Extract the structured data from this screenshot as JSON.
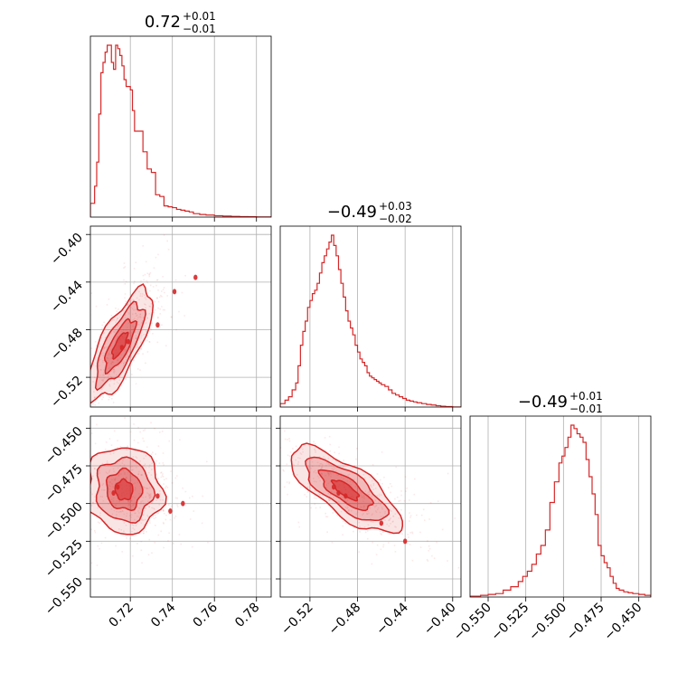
{
  "figure": {
    "type": "corner-plot",
    "color": "#d62728",
    "grid": true
  },
  "titles": [
    {
      "value": "0.72",
      "plus": "+0.01",
      "minus": "−0.01"
    },
    {
      "value": "−0.49",
      "plus": "+0.03",
      "minus": "−0.02"
    },
    {
      "value": "−0.49",
      "plus": "+0.01",
      "minus": "−0.01"
    }
  ],
  "params": [
    {
      "range": [
        0.701,
        0.787
      ],
      "ticks": [
        0.72,
        0.74,
        0.76,
        0.78
      ],
      "tick_labels": [
        "0.72",
        "0.74",
        "0.76",
        "0.78"
      ]
    },
    {
      "range": [
        -0.545,
        -0.393
      ],
      "ticks": [
        -0.52,
        -0.48,
        -0.44,
        -0.4
      ],
      "tick_labels": [
        "−0.52",
        "−0.48",
        "−0.44",
        "−0.40"
      ]
    },
    {
      "range": [
        -0.562,
        -0.442
      ],
      "ticks": [
        -0.55,
        -0.525,
        -0.5,
        -0.475,
        -0.45
      ],
      "tick_labels": [
        "−0.550",
        "−0.525",
        "−0.500",
        "−0.475",
        "−0.450"
      ]
    }
  ],
  "chart_data": [
    {
      "type": "histogram",
      "param": 0,
      "x": [
        0.701,
        0.703,
        0.704,
        0.705,
        0.706,
        0.707,
        0.708,
        0.709,
        0.71,
        0.711,
        0.712,
        0.713,
        0.714,
        0.715,
        0.716,
        0.717,
        0.718,
        0.719,
        0.72,
        0.721,
        0.722,
        0.723,
        0.724,
        0.726,
        0.728,
        0.73,
        0.732,
        0.734,
        0.736,
        0.738,
        0.74,
        0.742,
        0.744,
        0.746,
        0.748,
        0.75,
        0.753,
        0.756,
        0.76,
        0.764,
        0.768,
        0.772,
        0.776,
        0.78,
        0.787
      ],
      "counts": [
        0.08,
        0.18,
        0.32,
        0.6,
        0.84,
        0.9,
        0.96,
        1.0,
        1.0,
        0.9,
        0.86,
        1.0,
        0.98,
        0.94,
        0.88,
        0.8,
        0.76,
        0.76,
        0.74,
        0.62,
        0.5,
        0.5,
        0.5,
        0.38,
        0.28,
        0.26,
        0.13,
        0.12,
        0.065,
        0.06,
        0.055,
        0.045,
        0.04,
        0.035,
        0.03,
        0.02,
        0.015,
        0.012,
        0.008,
        0.006,
        0.004,
        0.003,
        0.002,
        0.001,
        0.0
      ]
    },
    {
      "type": "histogram",
      "param": 1,
      "x": [
        -0.545,
        -0.541,
        -0.538,
        -0.535,
        -0.532,
        -0.53,
        -0.528,
        -0.526,
        -0.524,
        -0.522,
        -0.52,
        -0.518,
        -0.516,
        -0.514,
        -0.512,
        -0.51,
        -0.508,
        -0.506,
        -0.504,
        -0.502,
        -0.5,
        -0.498,
        -0.496,
        -0.494,
        -0.492,
        -0.49,
        -0.488,
        -0.486,
        -0.484,
        -0.482,
        -0.48,
        -0.478,
        -0.476,
        -0.474,
        -0.472,
        -0.47,
        -0.468,
        -0.466,
        -0.464,
        -0.462,
        -0.46,
        -0.457,
        -0.454,
        -0.451,
        -0.448,
        -0.445,
        -0.442,
        -0.439,
        -0.436,
        -0.433,
        -0.43,
        -0.426,
        -0.422,
        -0.418,
        -0.414,
        -0.41,
        -0.406,
        -0.4
      ],
      "counts": [
        0.02,
        0.04,
        0.06,
        0.1,
        0.14,
        0.24,
        0.36,
        0.44,
        0.5,
        0.58,
        0.62,
        0.66,
        0.68,
        0.72,
        0.78,
        0.84,
        0.88,
        0.92,
        0.96,
        1.0,
        0.94,
        0.88,
        0.8,
        0.72,
        0.64,
        0.56,
        0.5,
        0.46,
        0.42,
        0.36,
        0.32,
        0.28,
        0.26,
        0.24,
        0.2,
        0.18,
        0.17,
        0.16,
        0.15,
        0.14,
        0.13,
        0.12,
        0.1,
        0.08,
        0.07,
        0.06,
        0.05,
        0.04,
        0.035,
        0.03,
        0.025,
        0.02,
        0.015,
        0.012,
        0.008,
        0.005,
        0.003,
        0.0
      ]
    },
    {
      "type": "histogram",
      "param": 2,
      "x": [
        -0.562,
        -0.555,
        -0.55,
        -0.545,
        -0.54,
        -0.535,
        -0.53,
        -0.527,
        -0.524,
        -0.521,
        -0.518,
        -0.515,
        -0.512,
        -0.509,
        -0.506,
        -0.503,
        -0.501,
        -0.499,
        -0.497,
        -0.495,
        -0.493,
        -0.491,
        -0.489,
        -0.487,
        -0.485,
        -0.483,
        -0.481,
        -0.479,
        -0.477,
        -0.475,
        -0.473,
        -0.471,
        -0.469,
        -0.467,
        -0.465,
        -0.463,
        -0.46,
        -0.457,
        -0.454,
        -0.45,
        -0.446,
        -0.442
      ],
      "counts": [
        0.005,
        0.01,
        0.015,
        0.02,
        0.04,
        0.06,
        0.09,
        0.12,
        0.15,
        0.19,
        0.25,
        0.3,
        0.39,
        0.55,
        0.67,
        0.78,
        0.82,
        0.87,
        0.93,
        1.0,
        0.98,
        0.95,
        0.93,
        0.9,
        0.8,
        0.7,
        0.6,
        0.48,
        0.3,
        0.24,
        0.2,
        0.17,
        0.12,
        0.08,
        0.05,
        0.04,
        0.03,
        0.025,
        0.02,
        0.015,
        0.01,
        0.0
      ]
    },
    {
      "type": "scatter-contour",
      "x_param": 0,
      "y_param": 1,
      "center": [
        0.715,
        -0.493
      ],
      "sigma": [
        0.006,
        0.018
      ],
      "corr": 0.75,
      "mode_points": [
        [
          0.716,
          -0.495
        ],
        [
          0.719,
          -0.49
        ],
        [
          0.733,
          -0.476
        ],
        [
          0.741,
          -0.448
        ],
        [
          0.751,
          -0.436
        ]
      ]
    },
    {
      "type": "scatter-contour",
      "x_param": 0,
      "y_param": 2,
      "center": [
        0.717,
        -0.491
      ],
      "sigma": [
        0.007,
        0.011
      ],
      "corr": -0.05,
      "mode_points": [
        [
          0.712,
          -0.493
        ],
        [
          0.714,
          -0.489
        ],
        [
          0.733,
          -0.495
        ],
        [
          0.739,
          -0.505
        ],
        [
          0.745,
          -0.5
        ]
      ]
    },
    {
      "type": "scatter-contour",
      "x_param": 1,
      "y_param": 2,
      "center": [
        -0.49,
        -0.491
      ],
      "sigma": [
        0.018,
        0.011
      ],
      "corr": -0.75,
      "mode_points": [
        [
          -0.496,
          -0.493
        ],
        [
          -0.5,
          -0.489
        ],
        [
          -0.49,
          -0.495
        ],
        [
          -0.44,
          -0.525
        ],
        [
          -0.46,
          -0.513
        ]
      ]
    }
  ]
}
